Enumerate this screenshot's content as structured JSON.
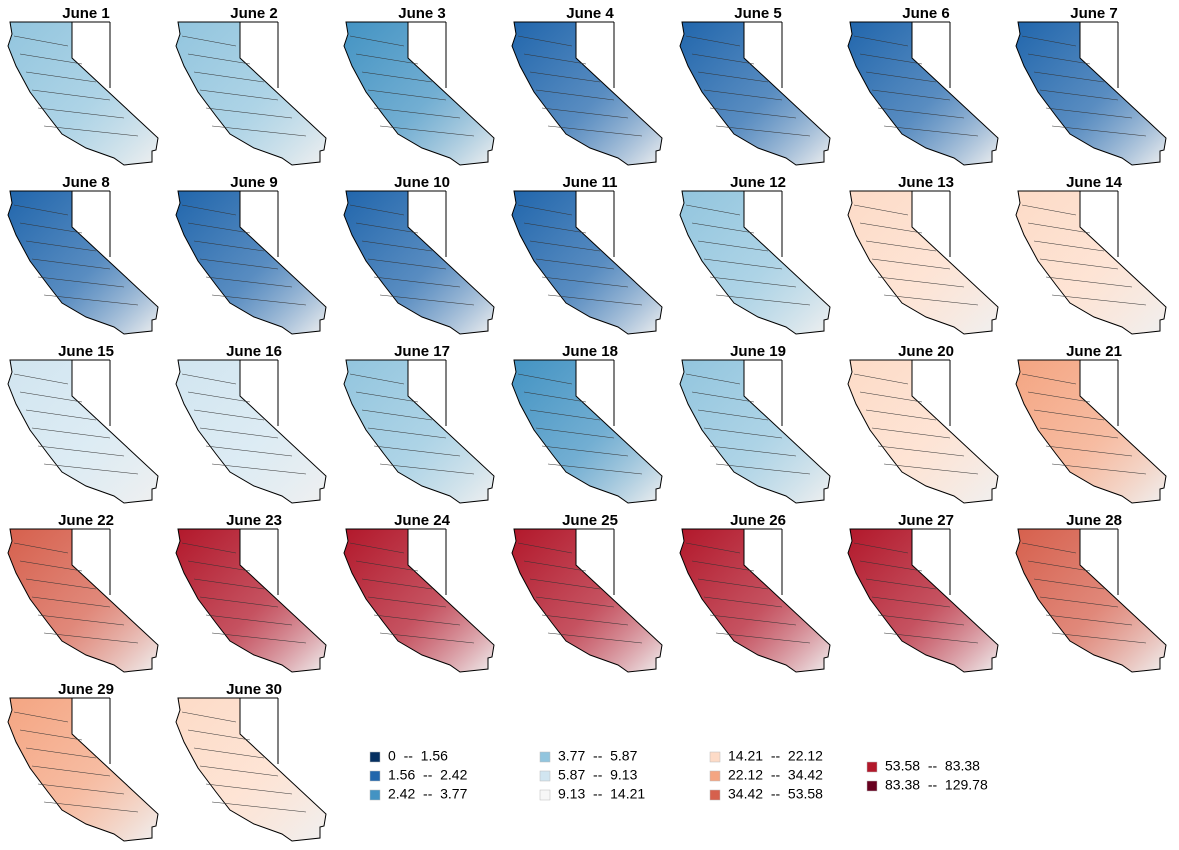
{
  "panels": [
    {
      "title": "June 1",
      "color": "#92c5de"
    },
    {
      "title": "June 2",
      "color": "#92c5de"
    },
    {
      "title": "June 3",
      "color": "#4393c3"
    },
    {
      "title": "June 4",
      "color": "#2166ac"
    },
    {
      "title": "June 5",
      "color": "#2166ac"
    },
    {
      "title": "June 6",
      "color": "#2166ac"
    },
    {
      "title": "June 7",
      "color": "#2166ac"
    },
    {
      "title": "June 8",
      "color": "#2166ac"
    },
    {
      "title": "June 9",
      "color": "#2166ac"
    },
    {
      "title": "June 10",
      "color": "#2166ac"
    },
    {
      "title": "June 11",
      "color": "#2166ac"
    },
    {
      "title": "June 12",
      "color": "#92c5de"
    },
    {
      "title": "June 13",
      "color": "#fddbc7"
    },
    {
      "title": "June 14",
      "color": "#fddbc7"
    },
    {
      "title": "June 15",
      "color": "#d1e5f0"
    },
    {
      "title": "June 16",
      "color": "#d1e5f0"
    },
    {
      "title": "June 17",
      "color": "#92c5de"
    },
    {
      "title": "June 18",
      "color": "#4393c3"
    },
    {
      "title": "June 19",
      "color": "#92c5de"
    },
    {
      "title": "June 20",
      "color": "#fddbc7"
    },
    {
      "title": "June 21",
      "color": "#f4a582"
    },
    {
      "title": "June 22",
      "color": "#d6604d"
    },
    {
      "title": "June 23",
      "color": "#b2182b"
    },
    {
      "title": "June 24",
      "color": "#b2182b"
    },
    {
      "title": "June 25",
      "color": "#b2182b"
    },
    {
      "title": "June 26",
      "color": "#b2182b"
    },
    {
      "title": "June 27",
      "color": "#b2182b"
    },
    {
      "title": "June 28",
      "color": "#d6604d"
    },
    {
      "title": "June 29",
      "color": "#f4a582"
    },
    {
      "title": "June 30",
      "color": "#fddbc7"
    }
  ],
  "legend": [
    {
      "label": "0  --  1.56",
      "color": "#053061"
    },
    {
      "label": "1.56  --  2.42",
      "color": "#2166ac"
    },
    {
      "label": "2.42  --  3.77",
      "color": "#4393c3"
    },
    {
      "label": "3.77  --  5.87",
      "color": "#92c5de"
    },
    {
      "label": "5.87  --  9.13",
      "color": "#d1e5f0"
    },
    {
      "label": "9.13  --  14.21",
      "color": "#f7f7f7"
    },
    {
      "label": "14.21  --  22.12",
      "color": "#fddbc7"
    },
    {
      "label": "22.12  --  34.42",
      "color": "#f4a582"
    },
    {
      "label": "34.42  --  53.58",
      "color": "#d6604d"
    },
    {
      "label": "53.58  --  83.38",
      "color": "#b2182b"
    },
    {
      "label": "83.38  --  129.78",
      "color": "#67001f"
    }
  ]
}
